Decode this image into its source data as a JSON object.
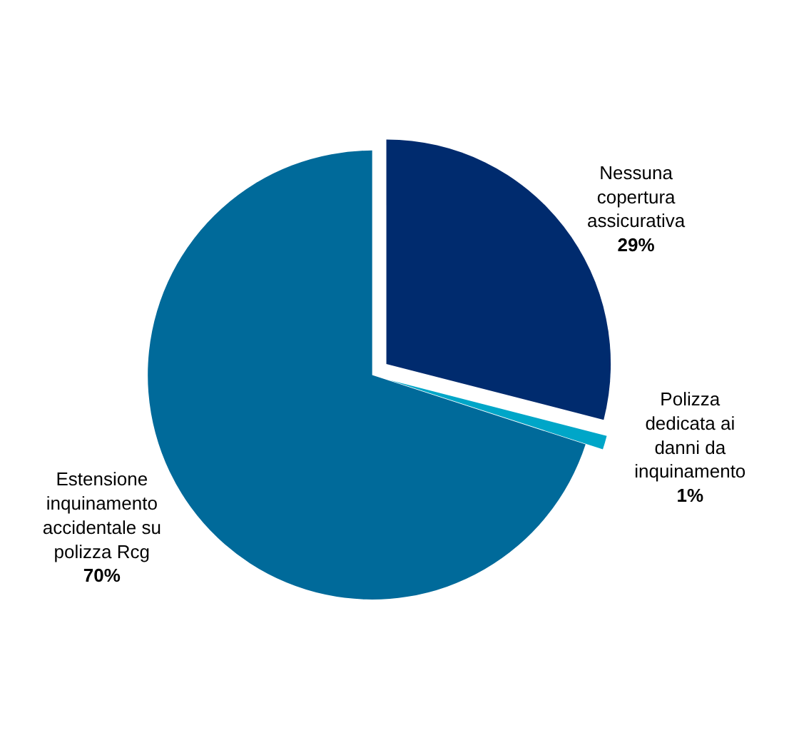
{
  "chart_data": {
    "type": "pie",
    "categories": [
      "Nessuna copertura assicurativa",
      "Polizza dedicata ai danni da inquinamento",
      "Estensione inquinamento accidentale su polizza Rcg"
    ],
    "values": [
      29,
      1,
      70
    ],
    "value_labels": [
      "29%",
      "1%",
      "70%"
    ],
    "colors": [
      "#002b6e",
      "#00a6c8",
      "#006a9a"
    ],
    "legend": false
  }
}
